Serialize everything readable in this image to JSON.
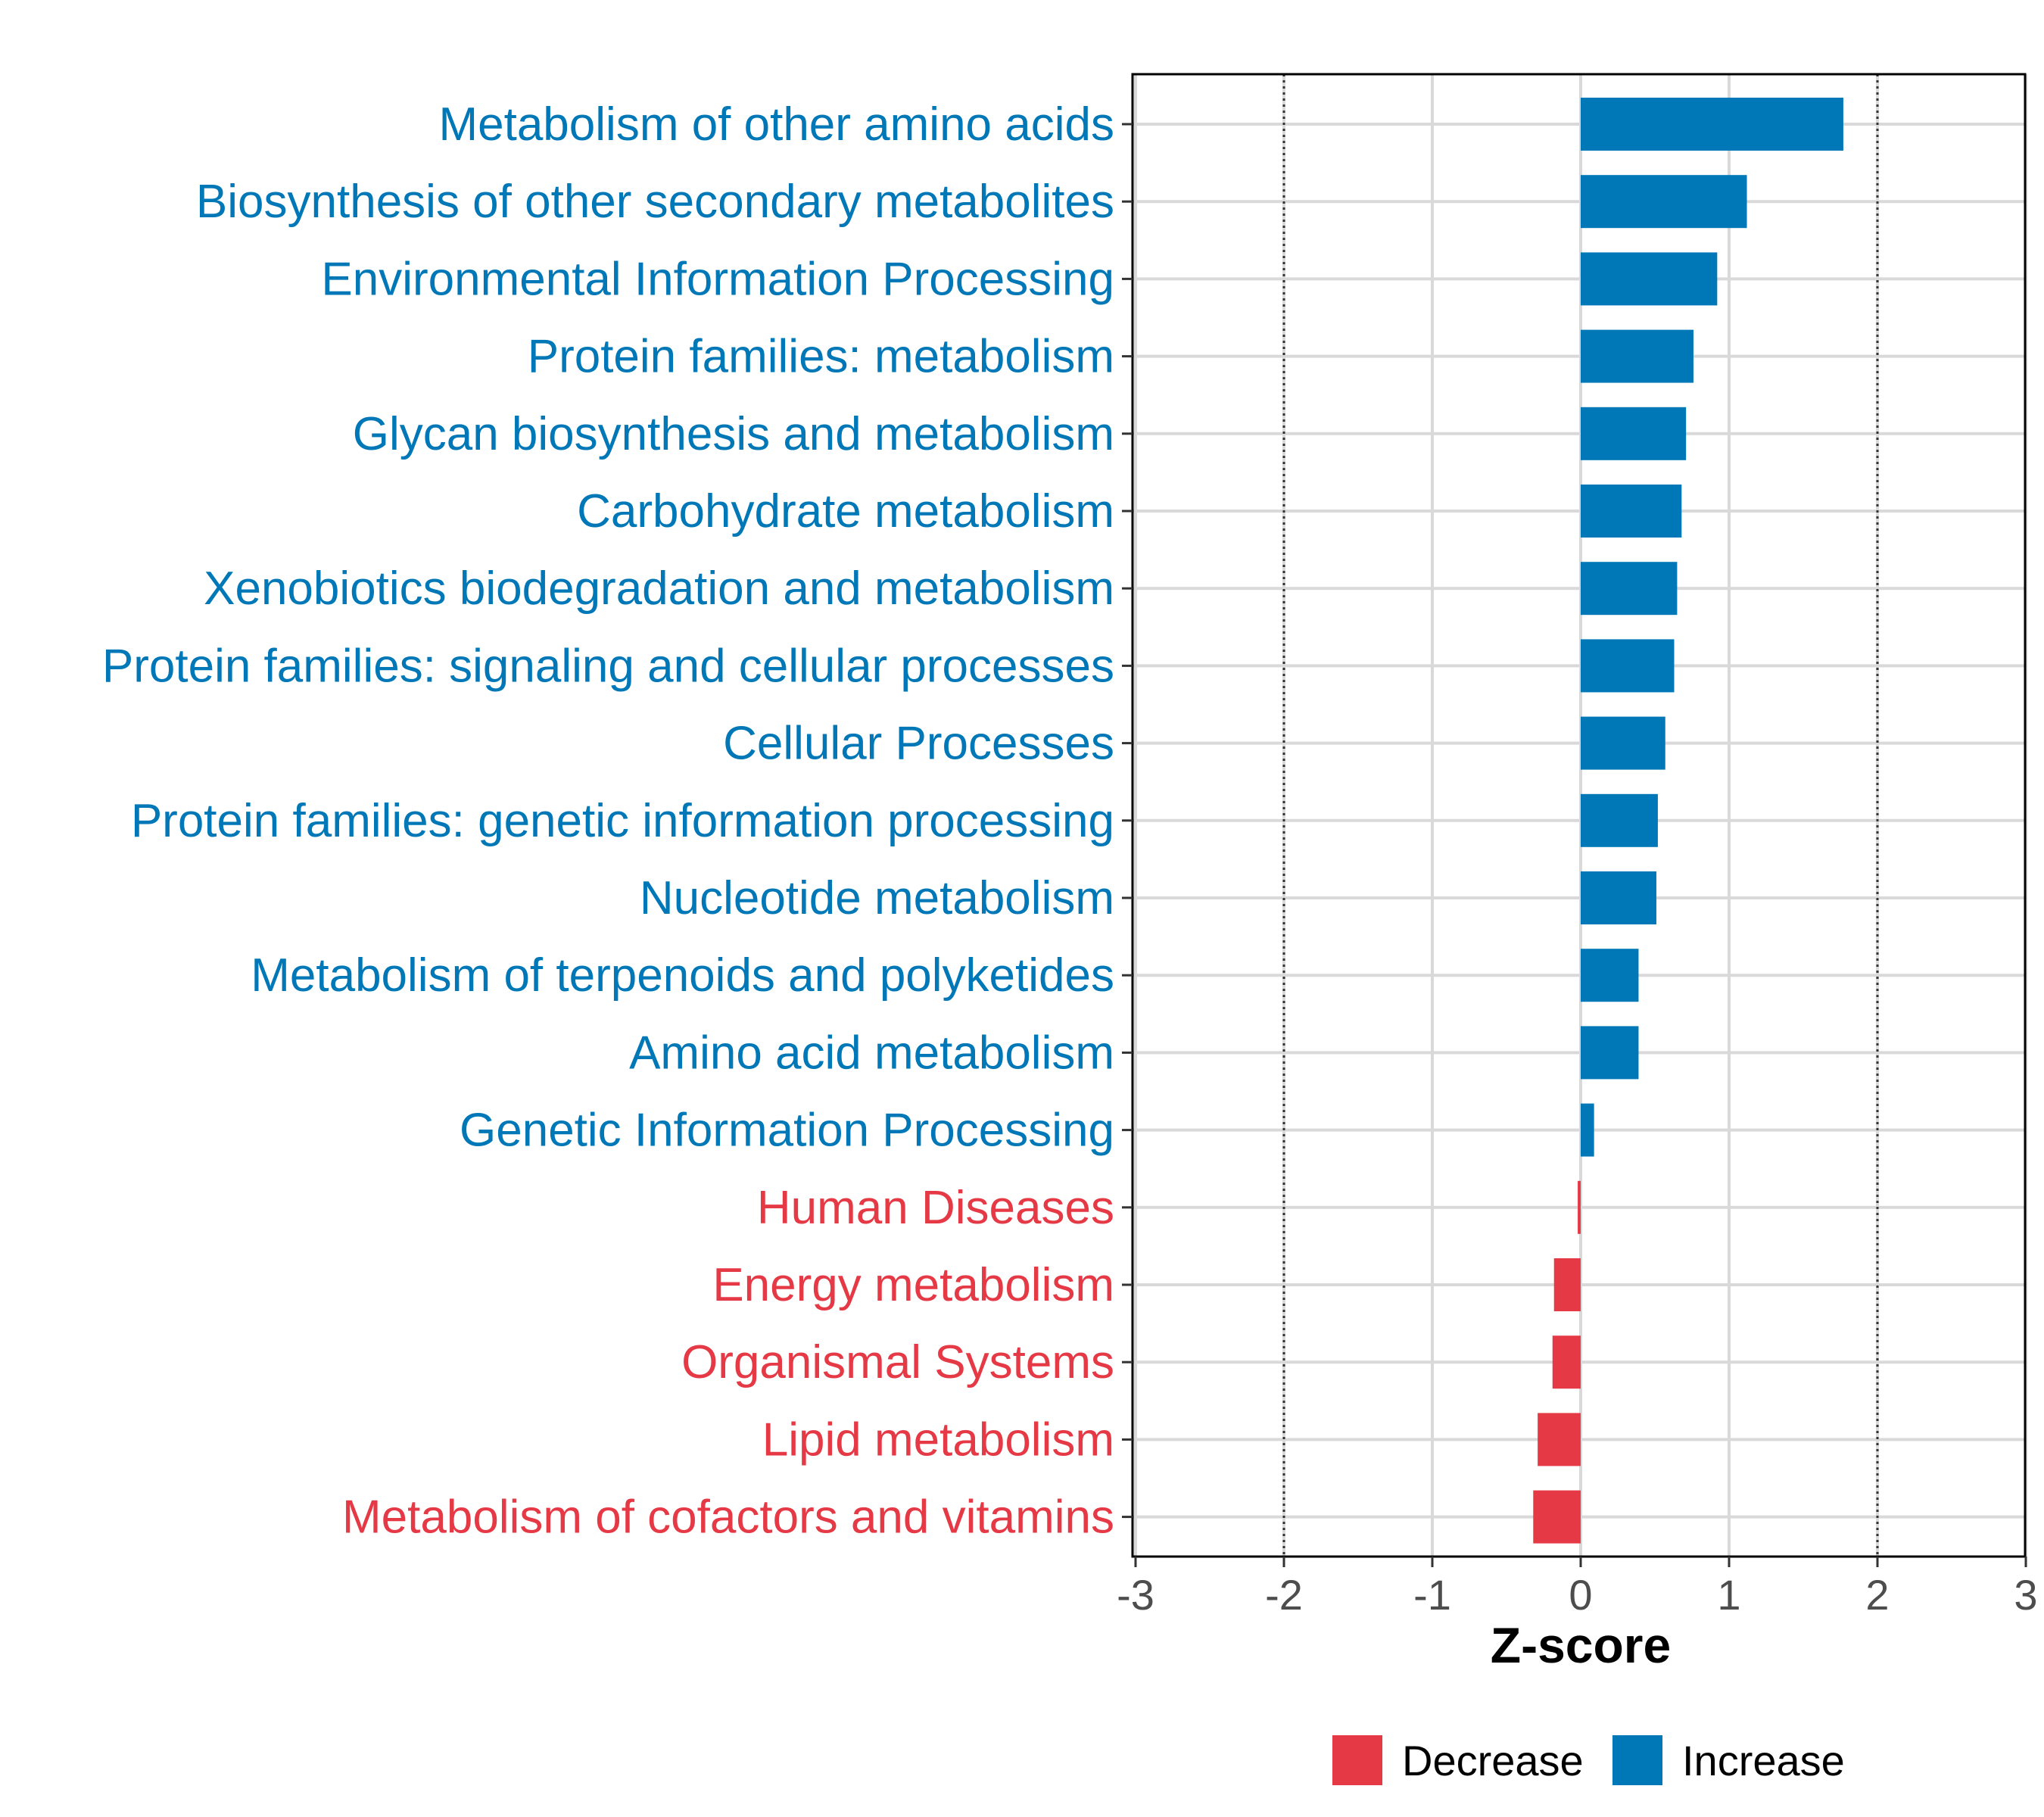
{
  "chart_data": {
    "type": "bar",
    "orientation": "horizontal",
    "xlabel": "Z-score",
    "xlim": [
      -3,
      3
    ],
    "xticks": [
      -3,
      -2,
      -1,
      0,
      1,
      2,
      3
    ],
    "reference_lines": [
      -2,
      2
    ],
    "grid": true,
    "legend_position": "bottom",
    "categories": [
      "Metabolism of other amino acids",
      "Biosynthesis of other secondary metabolites",
      "Environmental Information Processing",
      "Protein families: metabolism",
      "Glycan biosynthesis and metabolism",
      "Carbohydrate metabolism",
      "Xenobiotics biodegradation and metabolism",
      "Protein families: signaling and cellular processes",
      "Cellular Processes",
      "Protein families: genetic information processing",
      "Nucleotide metabolism",
      "Metabolism of terpenoids and polyketides",
      "Amino acid metabolism",
      "Genetic Information Processing",
      "Human Diseases",
      "Energy metabolism",
      "Organismal Systems",
      "Lipid metabolism",
      "Metabolism of cofactors and vitamins"
    ],
    "values": [
      1.77,
      1.12,
      0.92,
      0.76,
      0.71,
      0.68,
      0.65,
      0.63,
      0.57,
      0.52,
      0.51,
      0.39,
      0.39,
      0.09,
      -0.02,
      -0.18,
      -0.19,
      -0.29,
      -0.32
    ],
    "groups": [
      "Increase",
      "Increase",
      "Increase",
      "Increase",
      "Increase",
      "Increase",
      "Increase",
      "Increase",
      "Increase",
      "Increase",
      "Increase",
      "Increase",
      "Increase",
      "Increase",
      "Decrease",
      "Decrease",
      "Decrease",
      "Decrease",
      "Decrease"
    ],
    "legend": [
      {
        "label": "Decrease",
        "color": "#e63946"
      },
      {
        "label": "Increase",
        "color": "#0077b6"
      }
    ]
  }
}
